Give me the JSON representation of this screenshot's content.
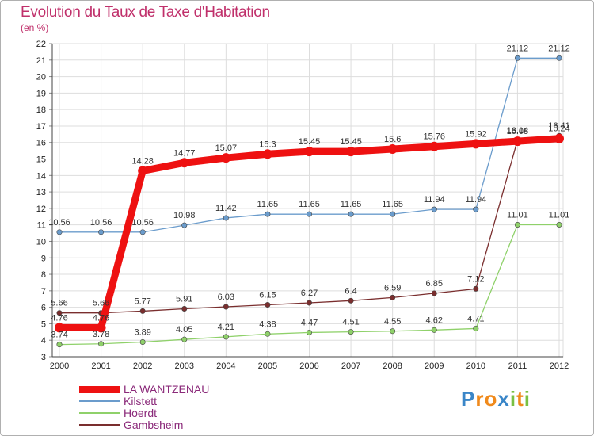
{
  "header": {
    "title": "Evolution du Taux de Taxe d'Habitation",
    "unit": "(en %)"
  },
  "chart_data": {
    "type": "line",
    "title": "Evolution du Taux de Taxe d'Habitation",
    "ylabel": "(en %)",
    "xlabel": "",
    "x": [
      "2000",
      "2001",
      "2002",
      "2003",
      "2004",
      "2005",
      "2006",
      "2007",
      "2008",
      "2009",
      "2010",
      "2011",
      "2012"
    ],
    "ylim": [
      3,
      22
    ],
    "yticks": [
      3,
      4,
      5,
      6,
      7,
      8,
      9,
      10,
      11,
      12,
      13,
      14,
      15,
      16,
      17,
      18,
      19,
      20,
      21,
      22
    ],
    "grid": true,
    "legend_position": "bottom-left",
    "series": [
      {
        "name": "LA WANTZENAU",
        "color": "#ee1111",
        "width": "thick",
        "values": [
          4.76,
          4.76,
          14.28,
          14.77,
          15.07,
          15.3,
          15.45,
          15.45,
          15.6,
          15.76,
          15.92,
          16.08,
          16.24
        ],
        "labels": [
          "4.76",
          "4.76",
          "14.28",
          "14.77",
          "15.07",
          "15.3",
          "15.45",
          "15.45",
          "15.6",
          "15.76",
          "15.92",
          "16.08",
          "16.24"
        ]
      },
      {
        "name": "Kilstett",
        "color": "#6b9ccc",
        "width": "thin",
        "values": [
          10.56,
          10.56,
          10.56,
          10.98,
          11.42,
          11.65,
          11.65,
          11.65,
          11.65,
          11.94,
          11.94,
          21.12,
          21.12
        ],
        "labels": [
          "10.56",
          "10.56",
          "10.56",
          "10.98",
          "11.42",
          "11.65",
          "11.65",
          "11.65",
          "11.65",
          "11.94",
          "11.94",
          "21.12",
          "21.12"
        ]
      },
      {
        "name": "Hoerdt",
        "color": "#8fd16a",
        "width": "thin",
        "values": [
          3.74,
          3.78,
          3.89,
          4.05,
          4.21,
          4.38,
          4.47,
          4.51,
          4.55,
          4.62,
          4.71,
          11.01,
          11.01
        ],
        "labels": [
          "3.74",
          "3.78",
          "3.89",
          "4.05",
          "4.21",
          "4.38",
          "4.47",
          "4.51",
          "4.55",
          "4.62",
          "4.71",
          "11.01",
          "11.01"
        ]
      },
      {
        "name": "Gambsheim",
        "color": "#7a2e2e",
        "width": "thin",
        "values": [
          5.66,
          5.66,
          5.77,
          5.91,
          6.03,
          6.15,
          6.27,
          6.4,
          6.59,
          6.85,
          7.12,
          16.14,
          16.41
        ],
        "labels": [
          "5.66",
          "5.66",
          "5.77",
          "5.91",
          "6.03",
          "6.15",
          "6.27",
          "6.4",
          "6.59",
          "6.85",
          "7.12",
          "16.14",
          "16.41"
        ]
      }
    ]
  },
  "logo": {
    "text": "Proxiti",
    "letters": [
      "P",
      "r",
      "o",
      "x",
      "i",
      "t",
      "i"
    ],
    "colors": [
      "#3a86c8",
      "#f08a1c",
      "#f08a1c",
      "#3a86c8",
      "#79c043",
      "#f08a1c",
      "#79c043"
    ]
  }
}
